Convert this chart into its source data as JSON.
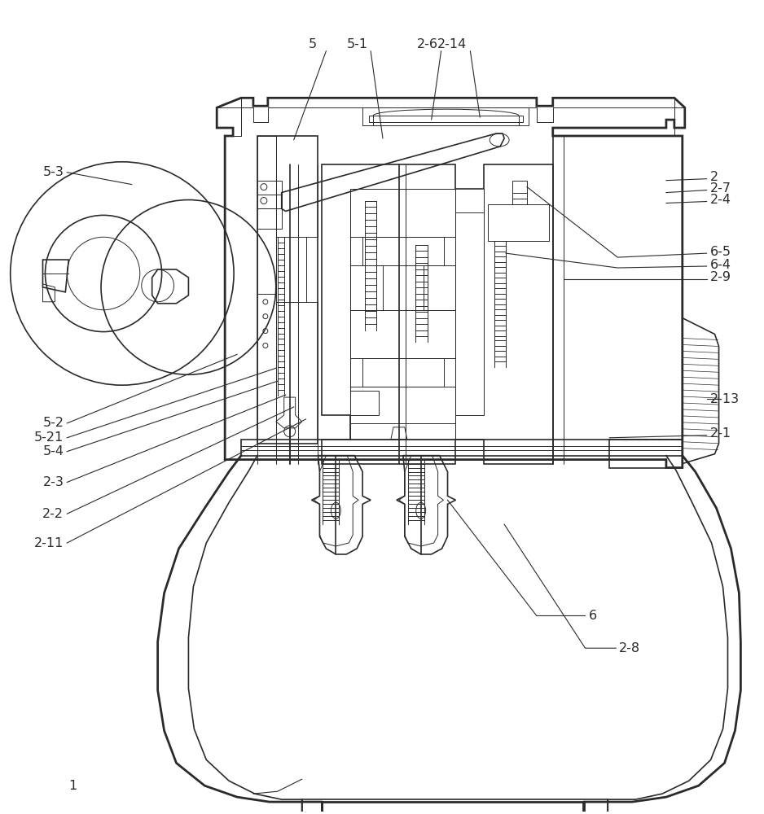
{
  "bg_color": "#ffffff",
  "line_color": "#2a2a2a",
  "fig_w": 9.38,
  "fig_h": 10.0,
  "dpi": 100
}
